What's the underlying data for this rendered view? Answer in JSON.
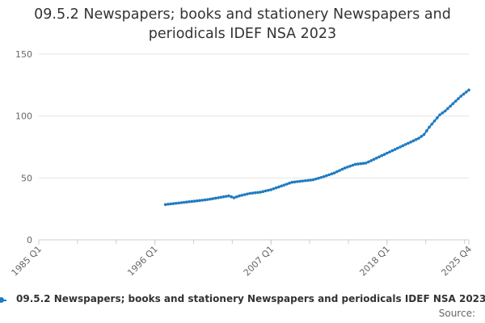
{
  "chart_data": {
    "type": "line",
    "title": "09.5.2 Newspapers; books and stationery Newspapers and periodicals IDEF NSA 2023",
    "ylim": [
      0,
      150
    ],
    "yticks": [
      "0",
      "50",
      "100",
      "150"
    ],
    "yticks_values": [
      0,
      50,
      100,
      150
    ],
    "xlim": [
      1985.0,
      2025.75
    ],
    "xticks": [
      {
        "label": "1985 Q1",
        "value": 1985.0
      },
      {
        "label": "1996 Q1",
        "value": 1996.0
      },
      {
        "label": "2007 Q1",
        "value": 2007.0
      },
      {
        "label": "2018 Q1",
        "value": 2018.0
      },
      {
        "label": "2025 Q4",
        "value": 2025.75
      }
    ],
    "grid": "horizontal",
    "legend_position": "bottom",
    "series": [
      {
        "name": "09.5.2 Newspapers; books and stationery Newspapers and periodicals IDEF NSA 2023",
        "color": "#1f7bc1",
        "x": [
          1997.0,
          1998.0,
          1999.0,
          2000.0,
          2001.0,
          2002.0,
          2003.0,
          2003.5,
          2004.0,
          2005.0,
          2006.0,
          2007.0,
          2008.0,
          2009.0,
          2010.0,
          2011.0,
          2012.0,
          2013.0,
          2014.0,
          2015.0,
          2016.0,
          2017.0,
          2018.0,
          2019.0,
          2020.0,
          2020.5,
          2021.0,
          2021.5,
          2022.0,
          2022.5,
          2023.0,
          2023.5,
          2024.0,
          2024.5,
          2025.0,
          2025.75
        ],
        "values": [
          28.5,
          29.5,
          30.5,
          31.5,
          32.5,
          34.0,
          35.5,
          34.0,
          35.5,
          37.5,
          38.5,
          40.5,
          43.5,
          46.5,
          47.5,
          48.5,
          51.0,
          54.0,
          58.0,
          61.0,
          62.0,
          66.0,
          70.0,
          74.0,
          78.0,
          80.0,
          82.0,
          85.0,
          91.0,
          96.0,
          101.0,
          104.0,
          108.0,
          112.0,
          116.0,
          121.0
        ]
      }
    ]
  },
  "legend": {
    "label": "09.5.2 Newspapers; books and stationery Newspapers and periodicals IDEF NSA 2023"
  },
  "source": "Source:"
}
